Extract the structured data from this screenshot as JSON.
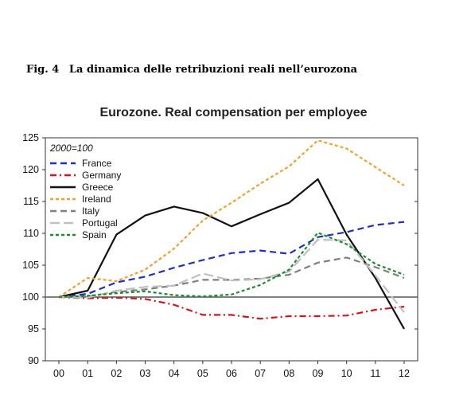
{
  "figure": {
    "number": "Fig. 4",
    "caption": "La dinamica delle retribuzioni reali nell’eurozona"
  },
  "chart_data": {
    "type": "line",
    "title": "Eurozone. Real compensation per employee",
    "base_label": "2000=100",
    "xlabel": "",
    "ylabel": "",
    "categories": [
      "00",
      "01",
      "02",
      "03",
      "04",
      "05",
      "06",
      "07",
      "08",
      "09",
      "10",
      "11",
      "12"
    ],
    "ylim": [
      90,
      125
    ],
    "yticks": [
      90,
      95,
      100,
      105,
      110,
      115,
      120,
      125
    ],
    "reference_line": 100,
    "grid": false,
    "legend_position": "top-left",
    "series": [
      {
        "name": "France",
        "color": "#1f2fbf",
        "dash": "dashed",
        "values": [
          100,
          100.5,
          102.3,
          103.2,
          104.6,
          105.8,
          106.9,
          107.3,
          106.8,
          109.4,
          110.2,
          111.3,
          111.8
        ]
      },
      {
        "name": "Germany",
        "color": "#d4131b",
        "dash": "dashdot",
        "values": [
          100,
          99.8,
          99.9,
          99.7,
          98.8,
          97.2,
          97.2,
          96.6,
          97.0,
          97.0,
          97.1,
          98.0,
          98.5
        ]
      },
      {
        "name": "Greece",
        "color": "#111111",
        "dash": "solid",
        "values": [
          100,
          101.0,
          109.8,
          112.8,
          114.2,
          113.2,
          111.1,
          113.0,
          114.8,
          118.5,
          109.8,
          103.0,
          95.0
        ]
      },
      {
        "name": "Ireland",
        "color": "#f0a030",
        "dash": "dotted",
        "values": [
          100,
          103.0,
          102.5,
          104.3,
          107.6,
          112.0,
          114.8,
          117.8,
          120.5,
          124.6,
          123.3,
          120.4,
          117.5
        ]
      },
      {
        "name": "Italy",
        "color": "#7f7f7f",
        "dash": "dashed",
        "values": [
          100,
          100.1,
          100.8,
          101.2,
          101.8,
          102.7,
          102.7,
          102.9,
          103.5,
          105.4,
          106.2,
          104.7,
          103.0
        ]
      },
      {
        "name": "Portugal",
        "color": "#c0c0c0",
        "dash": "longdash",
        "values": [
          100,
          99.9,
          101.0,
          101.6,
          101.8,
          103.7,
          102.6,
          102.8,
          104.0,
          109.0,
          108.9,
          103.4,
          97.6
        ]
      },
      {
        "name": "Spain",
        "color": "#1e8c2e",
        "dash": "dotted",
        "values": [
          100,
          100.2,
          100.6,
          100.9,
          100.3,
          100.1,
          100.4,
          101.9,
          104.3,
          110.1,
          108.3,
          105.2,
          103.5
        ]
      }
    ]
  }
}
